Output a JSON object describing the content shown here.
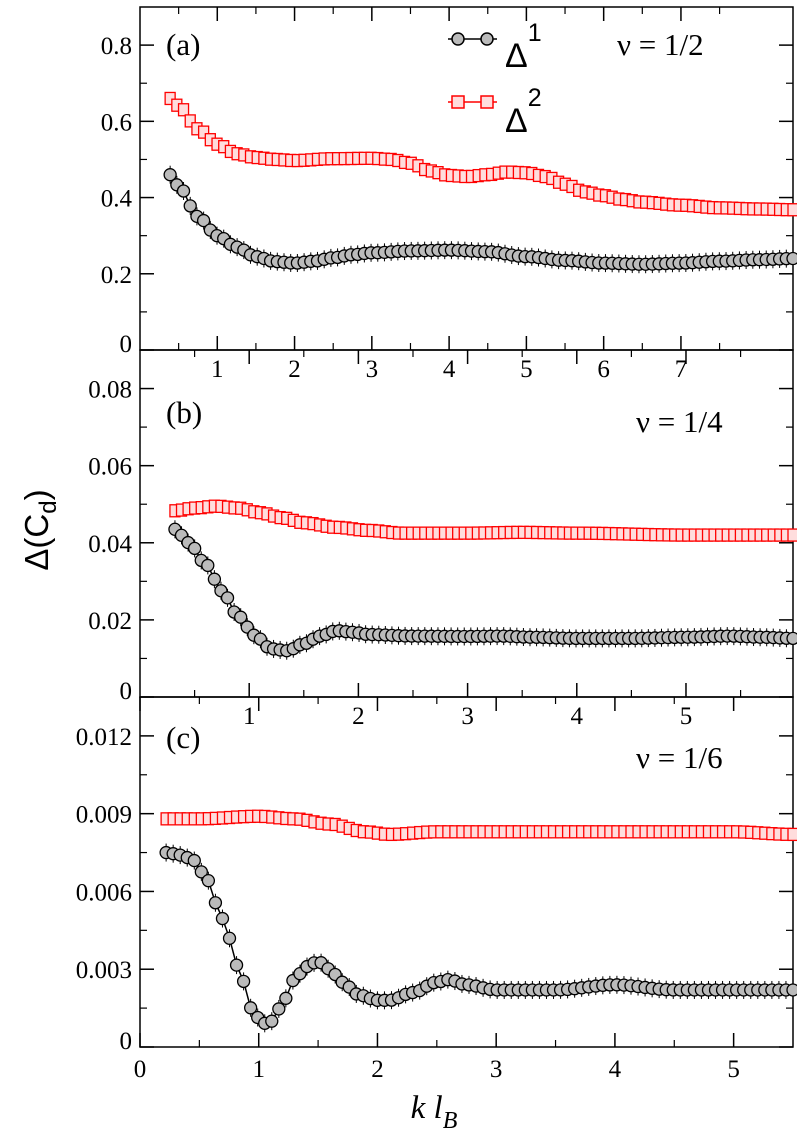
{
  "figure": {
    "ylabel": "Δ(C",
    "ylabel_sub": "d",
    "ylabel_end": ")",
    "xlabel_main": "k l",
    "xlabel_sub": "B"
  },
  "legend": [
    {
      "label": "Δ",
      "sup": "1",
      "color": "#000000",
      "marker": "circle"
    },
    {
      "label": "Δ",
      "sup": "2",
      "color": "#ff0000",
      "marker": "square"
    }
  ],
  "colors": {
    "delta1": "#000000",
    "delta2": "#ff0000",
    "delta1_fill": "#bbbbbb",
    "delta2_fill": "#ffdddd"
  },
  "chart_data": [
    {
      "type": "line",
      "panel": "(a)",
      "nu_label": "ν = 1/2",
      "xlim": [
        0,
        8.45
      ],
      "ylim": [
        0,
        0.9
      ],
      "xticks": [
        1,
        2,
        3,
        4,
        5,
        6,
        7
      ],
      "xtick_labels": [
        "1",
        "2",
        "3",
        "4",
        "5",
        "6",
        "7"
      ],
      "yticks": [
        0,
        0.2,
        0.4,
        0.6,
        0.8
      ],
      "ytick_labels": [
        "0",
        "0.2",
        "0.4",
        "0.6",
        "0.8"
      ],
      "series": [
        {
          "name": "Δ1",
          "x_start": 0.39,
          "x_end": 8.45,
          "n": 94,
          "anchors": [
            [
              0.39,
              0.46
            ],
            [
              0.5,
              0.43
            ],
            [
              0.75,
              0.35
            ],
            [
              1.0,
              0.3
            ],
            [
              1.25,
              0.27
            ],
            [
              1.5,
              0.245
            ],
            [
              1.75,
              0.232
            ],
            [
              2.0,
              0.228
            ],
            [
              2.25,
              0.233
            ],
            [
              2.5,
              0.242
            ],
            [
              2.75,
              0.25
            ],
            [
              3.0,
              0.255
            ],
            [
              3.5,
              0.26
            ],
            [
              4.0,
              0.262
            ],
            [
              4.5,
              0.258
            ],
            [
              5.0,
              0.245
            ],
            [
              5.5,
              0.235
            ],
            [
              6.0,
              0.228
            ],
            [
              6.5,
              0.225
            ],
            [
              7.0,
              0.228
            ],
            [
              7.5,
              0.233
            ],
            [
              8.0,
              0.237
            ],
            [
              8.45,
              0.24
            ]
          ]
        },
        {
          "name": "Δ2",
          "x_start": 0.39,
          "x_end": 8.45,
          "n": 94,
          "anchors": [
            [
              0.39,
              0.66
            ],
            [
              0.5,
              0.64
            ],
            [
              0.75,
              0.58
            ],
            [
              1.0,
              0.54
            ],
            [
              1.25,
              0.515
            ],
            [
              1.5,
              0.505
            ],
            [
              1.75,
              0.5
            ],
            [
              2.0,
              0.497
            ],
            [
              2.5,
              0.502
            ],
            [
              3.0,
              0.503
            ],
            [
              3.25,
              0.5
            ],
            [
              3.5,
              0.49
            ],
            [
              3.75,
              0.47
            ],
            [
              4.0,
              0.458
            ],
            [
              4.25,
              0.455
            ],
            [
              4.5,
              0.46
            ],
            [
              4.75,
              0.467
            ],
            [
              5.0,
              0.465
            ],
            [
              5.25,
              0.455
            ],
            [
              5.5,
              0.435
            ],
            [
              5.75,
              0.415
            ],
            [
              6.0,
              0.405
            ],
            [
              6.25,
              0.395
            ],
            [
              6.5,
              0.388
            ],
            [
              7.0,
              0.38
            ],
            [
              7.5,
              0.373
            ],
            [
              8.0,
              0.37
            ],
            [
              8.45,
              0.368
            ]
          ]
        }
      ]
    },
    {
      "type": "line",
      "panel": "(b)",
      "nu_label": "ν = 1/4",
      "xlim": [
        0,
        5.98
      ],
      "ylim": [
        0,
        0.09
      ],
      "xticks": [
        1,
        2,
        3,
        4,
        5
      ],
      "xtick_labels": [
        "1",
        "2",
        "3",
        "4",
        "5"
      ],
      "yticks": [
        0,
        0.02,
        0.04,
        0.06,
        0.08
      ],
      "ytick_labels": [
        "0",
        "0.02",
        "0.04",
        "0.06",
        "0.08"
      ],
      "series": [
        {
          "name": "Δ1",
          "x_start": 0.32,
          "x_end": 5.98,
          "n": 95,
          "anchors": [
            [
              0.32,
              0.0435
            ],
            [
              0.45,
              0.04
            ],
            [
              0.6,
              0.0345
            ],
            [
              0.75,
              0.0275
            ],
            [
              0.9,
              0.021
            ],
            [
              1.05,
              0.016
            ],
            [
              1.2,
              0.0125
            ],
            [
              1.35,
              0.012
            ],
            [
              1.5,
              0.0138
            ],
            [
              1.65,
              0.0158
            ],
            [
              1.8,
              0.0172
            ],
            [
              1.95,
              0.0168
            ],
            [
              2.1,
              0.0162
            ],
            [
              2.5,
              0.0158
            ],
            [
              3.0,
              0.0157
            ],
            [
              3.3,
              0.0158
            ],
            [
              3.6,
              0.0155
            ],
            [
              4.0,
              0.0152
            ],
            [
              4.5,
              0.0152
            ],
            [
              5.0,
              0.0155
            ],
            [
              5.4,
              0.0158
            ],
            [
              5.7,
              0.0155
            ],
            [
              5.98,
              0.0152
            ]
          ]
        },
        {
          "name": "Δ2",
          "x_start": 0.32,
          "x_end": 5.98,
          "n": 95,
          "anchors": [
            [
              0.32,
              0.0483
            ],
            [
              0.5,
              0.049
            ],
            [
              0.7,
              0.0495
            ],
            [
              0.9,
              0.049
            ],
            [
              1.1,
              0.0478
            ],
            [
              1.3,
              0.0465
            ],
            [
              1.5,
              0.0452
            ],
            [
              1.8,
              0.044
            ],
            [
              2.1,
              0.0432
            ],
            [
              2.4,
              0.0425
            ],
            [
              3.0,
              0.0425
            ],
            [
              3.5,
              0.0427
            ],
            [
              4.0,
              0.0425
            ],
            [
              5.0,
              0.042
            ],
            [
              5.98,
              0.042
            ]
          ]
        }
      ]
    },
    {
      "type": "line",
      "panel": "(c)",
      "nu_label": "ν = 1/6",
      "xlim": [
        0,
        5.5
      ],
      "ylim": [
        0,
        0.0135
      ],
      "xticks": [
        0,
        1,
        2,
        3,
        4,
        5
      ],
      "xtick_labels": [
        "0",
        "1",
        "2",
        "3",
        "4",
        "5"
      ],
      "yticks": [
        0,
        0.003,
        0.006,
        0.009,
        0.012
      ],
      "ytick_labels": [
        "0",
        "0.003",
        "0.006",
        "0.009",
        "0.012"
      ],
      "series": [
        {
          "name": "Δ1",
          "x_start": 0.22,
          "x_end": 5.5,
          "n": 90,
          "anchors": [
            [
              0.22,
              0.0075
            ],
            [
              0.35,
              0.0074
            ],
            [
              0.45,
              0.0072
            ],
            [
              0.55,
              0.0066
            ],
            [
              0.65,
              0.0055
            ],
            [
              0.75,
              0.0042
            ],
            [
              0.85,
              0.0027
            ],
            [
              0.95,
              0.0014
            ],
            [
              1.03,
              0.0009
            ],
            [
              1.12,
              0.001
            ],
            [
              1.2,
              0.0017
            ],
            [
              1.3,
              0.0026
            ],
            [
              1.4,
              0.0031
            ],
            [
              1.5,
              0.0033
            ],
            [
              1.6,
              0.003
            ],
            [
              1.7,
              0.0025
            ],
            [
              1.85,
              0.002
            ],
            [
              2.0,
              0.0018
            ],
            [
              2.1,
              0.0018
            ],
            [
              2.3,
              0.0021
            ],
            [
              2.5,
              0.0025
            ],
            [
              2.6,
              0.0026
            ],
            [
              2.75,
              0.0024
            ],
            [
              3.0,
              0.0022
            ],
            [
              3.5,
              0.0022
            ],
            [
              4.0,
              0.0024
            ],
            [
              4.5,
              0.0022
            ],
            [
              5.0,
              0.0022
            ],
            [
              5.5,
              0.0022
            ]
          ]
        },
        {
          "name": "Δ2",
          "x_start": 0.22,
          "x_end": 5.5,
          "n": 90,
          "anchors": [
            [
              0.22,
              0.0088
            ],
            [
              0.5,
              0.0088
            ],
            [
              1.0,
              0.0089
            ],
            [
              1.3,
              0.0088
            ],
            [
              1.6,
              0.0086
            ],
            [
              1.9,
              0.0083
            ],
            [
              2.1,
              0.0082
            ],
            [
              2.5,
              0.0083
            ],
            [
              3.0,
              0.0083
            ],
            [
              4.0,
              0.0083
            ],
            [
              5.0,
              0.0083
            ],
            [
              5.5,
              0.0082
            ]
          ]
        }
      ]
    }
  ]
}
